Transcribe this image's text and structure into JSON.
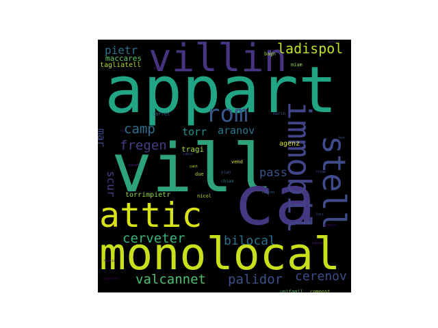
{
  "wordcloud": {
    "background": "#000000",
    "words": [
      {
        "text": "appart",
        "color": "#21a585",
        "emphasis": 1.0
      },
      {
        "text": "vill",
        "color": "#2ea27c",
        "emphasis": 1.0
      },
      {
        "text": "ca",
        "color": "#453781",
        "emphasis": 0.95
      },
      {
        "text": "monolocal",
        "color": "#c8df1c",
        "emphasis": 0.75
      },
      {
        "text": "villin",
        "color": "#463480",
        "emphasis": 0.55
      },
      {
        "text": "immobil",
        "color": "#414487",
        "emphasis": 0.55
      },
      {
        "text": "stell",
        "color": "#3f4b8a",
        "emphasis": 0.55
      },
      {
        "text": "attic",
        "color": "#d8e219",
        "emphasis": 0.5
      },
      {
        "text": "rom",
        "color": "#38588c",
        "emphasis": 0.4
      },
      {
        "text": "cerveter",
        "color": "#35b779",
        "emphasis": 0.25
      },
      {
        "text": "bilocal",
        "color": "#2c728e",
        "emphasis": 0.25
      },
      {
        "text": "ladispol",
        "color": "#c2df23",
        "emphasis": 0.2
      },
      {
        "text": "valcannet",
        "color": "#4ac16d",
        "emphasis": 0.2
      },
      {
        "text": "palidor",
        "color": "#3b518b",
        "emphasis": 0.2
      },
      {
        "text": "cerenov",
        "color": "#3e4c8a",
        "emphasis": 0.2
      },
      {
        "text": "camp",
        "color": "#2d708e",
        "emphasis": 0.2
      },
      {
        "text": "fregen",
        "color": "#433e85",
        "emphasis": 0.2
      },
      {
        "text": "pass",
        "color": "#3a548c",
        "emphasis": 0.2
      },
      {
        "text": "torr",
        "color": "#20938c",
        "emphasis": 0.18
      },
      {
        "text": "aranov",
        "color": "#2a778e",
        "emphasis": 0.18
      },
      {
        "text": "mar",
        "color": "#3e4989",
        "emphasis": 0.15
      },
      {
        "text": "scur",
        "color": "#433e85",
        "emphasis": 0.15
      },
      {
        "text": "pietr",
        "color": "#2e6f8e",
        "emphasis": 0.15
      },
      {
        "text": "maccares",
        "color": "#5ec962",
        "emphasis": 0.1
      },
      {
        "text": "tagliatell",
        "color": "#b0dd2f",
        "emphasis": 0.1
      },
      {
        "text": "torrimpietr",
        "color": "#90d743",
        "emphasis": 0.1
      },
      {
        "text": "tragi",
        "color": "#a5db36",
        "emphasis": 0.1
      },
      {
        "text": "agenz",
        "color": "#d8e219",
        "emphasis": 0.08
      },
      {
        "text": "bagn",
        "color": "#a0da39",
        "emphasis": 0.06
      },
      {
        "text": "miam",
        "color": "#8bd646",
        "emphasis": 0.06
      },
      {
        "text": "marin",
        "color": "#3b528b",
        "emphasis": 0.06
      },
      {
        "text": "corret",
        "color": "#31688e",
        "emphasis": 0.06
      },
      {
        "text": "cabin",
        "color": "#3e4a89",
        "emphasis": 0.05
      },
      {
        "text": "cant",
        "color": "#d0e11c",
        "emphasis": 0.05
      },
      {
        "text": "due",
        "color": "#b5de2b",
        "emphasis": 0.06
      },
      {
        "text": "vend",
        "color": "#dde318",
        "emphasis": 0.06
      },
      {
        "text": "pian",
        "color": "#3b528b",
        "emphasis": 0.05
      },
      {
        "text": "chiam",
        "color": "#2a788e",
        "emphasis": 0.05
      },
      {
        "text": "nicol",
        "color": "#c2df23",
        "emphasis": 0.06
      },
      {
        "text": "salon",
        "color": "#46337e",
        "emphasis": 0.05
      },
      {
        "text": "unifamil",
        "color": "#5ec962",
        "emphasis": 0.05
      },
      {
        "text": "compost",
        "color": "#9fda3a",
        "emphasis": 0.05
      },
      {
        "text": "rif",
        "color": "#481f70",
        "emphasis": 0.04
      },
      {
        "text": "dinat",
        "color": "#482576",
        "emphasis": 0.03
      },
      {
        "text": "affitt",
        "color": "#482878",
        "emphasis": 0.03
      },
      {
        "text": "piano",
        "color": "#443a83",
        "emphasis": 0.03
      },
      {
        "text": "frime",
        "color": "#3e4c8a",
        "emphasis": 0.03
      },
      {
        "text": "box",
        "color": "#3b528b",
        "emphasis": 0.03
      },
      {
        "text": "balcon",
        "color": "#31688e",
        "emphasis": 0.03
      },
      {
        "text": "poss",
        "color": "#471365",
        "emphasis": 0.03
      },
      {
        "text": "lazzar",
        "color": "#482173",
        "emphasis": 0.03
      },
      {
        "text": "rustic",
        "color": "#471063",
        "emphasis": 0.03
      },
      {
        "text": "gradin",
        "color": "#46085c",
        "emphasis": 0.03
      },
      {
        "text": "ingresso",
        "color": "#450559",
        "emphasis": 0.03
      },
      {
        "text": "luci",
        "color": "#3e4989",
        "emphasis": 0.03
      }
    ]
  }
}
